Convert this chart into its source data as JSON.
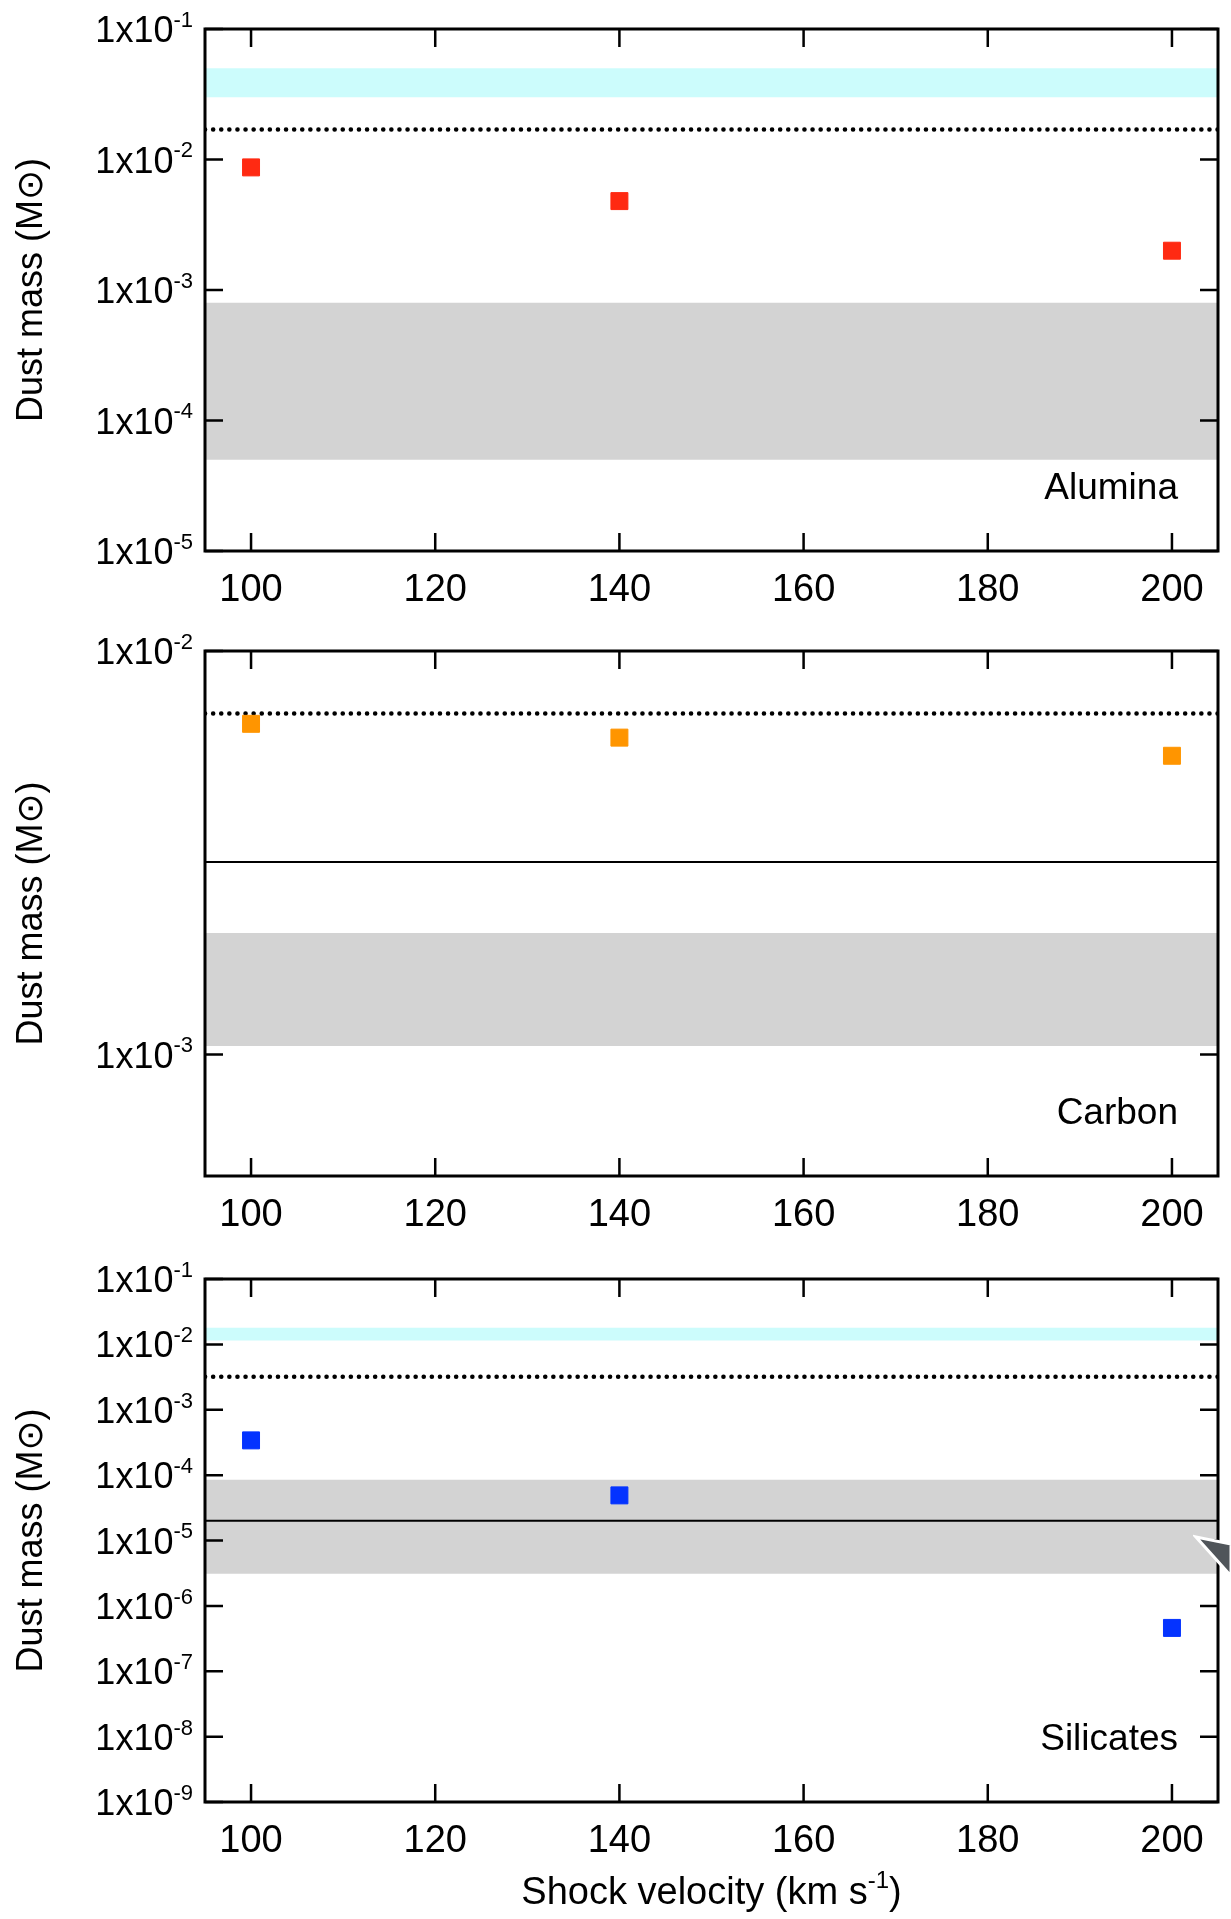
{
  "chart_data": [
    {
      "type": "scatter",
      "ylabel": "Dust mass (M⊙)",
      "x": [
        100,
        140,
        200
      ],
      "log": "y",
      "marker": "square",
      "grid": false,
      "legend": false,
      "series": [
        {
          "color": "#ff2a12",
          "values": [
            0.0087,
            0.0048,
            0.002
          ]
        }
      ],
      "xlim": [
        95,
        205
      ],
      "xticks": [
        100,
        120,
        140,
        160,
        180,
        200
      ],
      "ylim": [
        1e-05,
        0.1
      ],
      "yticks": [
        {
          "value": 0.1,
          "label": "1x10$^{-1}$"
        },
        {
          "value": 0.01,
          "label": "1x10$^{-2}$"
        },
        {
          "value": 0.001,
          "label": "1x10$^{-3}$"
        },
        {
          "value": 0.0001,
          "label": "1x10$^{-4}$"
        },
        {
          "value": 1e-05,
          "label": "1x10$^{-5}$"
        }
      ],
      "ref_lines": [
        {
          "axis": "y",
          "value": 0.017,
          "line_style": "dotted",
          "color": "#000000"
        }
      ],
      "bands": [
        {
          "axis": "y",
          "from": 0.03,
          "to": 0.05,
          "color": "#ccfcfc"
        },
        {
          "axis": "y",
          "from": 5e-05,
          "to": 0.0008,
          "color": "#d3d3d3"
        }
      ],
      "annotations": [
        "Alumina"
      ]
    },
    {
      "type": "scatter",
      "ylabel": "Dust mass (M⊙)",
      "x": [
        100,
        140,
        200
      ],
      "log": "y",
      "marker": "square",
      "grid": false,
      "legend": false,
      "series": [
        {
          "color": "#ff9500",
          "values": [
            0.0066,
            0.0061,
            0.0055
          ]
        }
      ],
      "xlim": [
        95,
        205
      ],
      "xticks": [
        100,
        120,
        140,
        160,
        180,
        200
      ],
      "ylim": [
        0.0005,
        0.01
      ],
      "yticks": [
        {
          "value": 0.01,
          "label": "1x10$^{-2}$"
        },
        {
          "value": 0.001,
          "label": "1x10$^{-3}$"
        }
      ],
      "ref_lines": [
        {
          "axis": "y",
          "value": 0.007,
          "line_style": "dotted",
          "color": "#000000"
        },
        {
          "axis": "y",
          "value": 0.003,
          "line_style": "solid",
          "color": "#000000"
        }
      ],
      "bands": [
        {
          "axis": "y",
          "from": 0.00105,
          "to": 0.002,
          "color": "#d3d3d3"
        }
      ],
      "annotations": [
        "Carbon"
      ]
    },
    {
      "type": "scatter",
      "ylabel": "Dust mass (M⊙)",
      "xlabel": "Shock velocity (km s$^{-1}$)",
      "x": [
        100,
        140,
        200
      ],
      "log": "y",
      "marker": "square",
      "grid": false,
      "legend": false,
      "series": [
        {
          "color": "#0433ff",
          "values": [
            0.00034,
            4.9e-05,
            4.6e-07
          ]
        }
      ],
      "xlim": [
        95,
        205
      ],
      "xticks": [
        100,
        120,
        140,
        160,
        180,
        200
      ],
      "ylim": [
        1e-09,
        0.1
      ],
      "yticks": [
        {
          "value": 0.1,
          "label": "1x10$^{-1}$"
        },
        {
          "value": 0.01,
          "label": "1x10$^{-2}$"
        },
        {
          "value": 0.001,
          "label": "1x10$^{-3}$"
        },
        {
          "value": 0.0001,
          "label": "1x10$^{-4}$"
        },
        {
          "value": 1e-05,
          "label": "1x10$^{-5}$"
        },
        {
          "value": 1e-06,
          "label": "1x10$^{-6}$"
        },
        {
          "value": 1e-07,
          "label": "1x10$^{-7}$"
        },
        {
          "value": 1e-08,
          "label": "1x10$^{-8}$"
        },
        {
          "value": 1e-09,
          "label": "1x10$^{-9}$"
        }
      ],
      "ref_lines": [
        {
          "axis": "y",
          "value": 0.0032,
          "line_style": "dotted",
          "color": "#000000"
        },
        {
          "axis": "y",
          "value": 2e-05,
          "line_style": "solid",
          "color": "#000000"
        }
      ],
      "bands": [
        {
          "axis": "y",
          "from": 0.0115,
          "to": 0.018,
          "color": "#ccfcfc"
        },
        {
          "axis": "y",
          "from": 3.1e-06,
          "to": 8.5e-05,
          "color": "#d3d3d3"
        }
      ],
      "annotations": [
        "Silicates"
      ]
    }
  ]
}
